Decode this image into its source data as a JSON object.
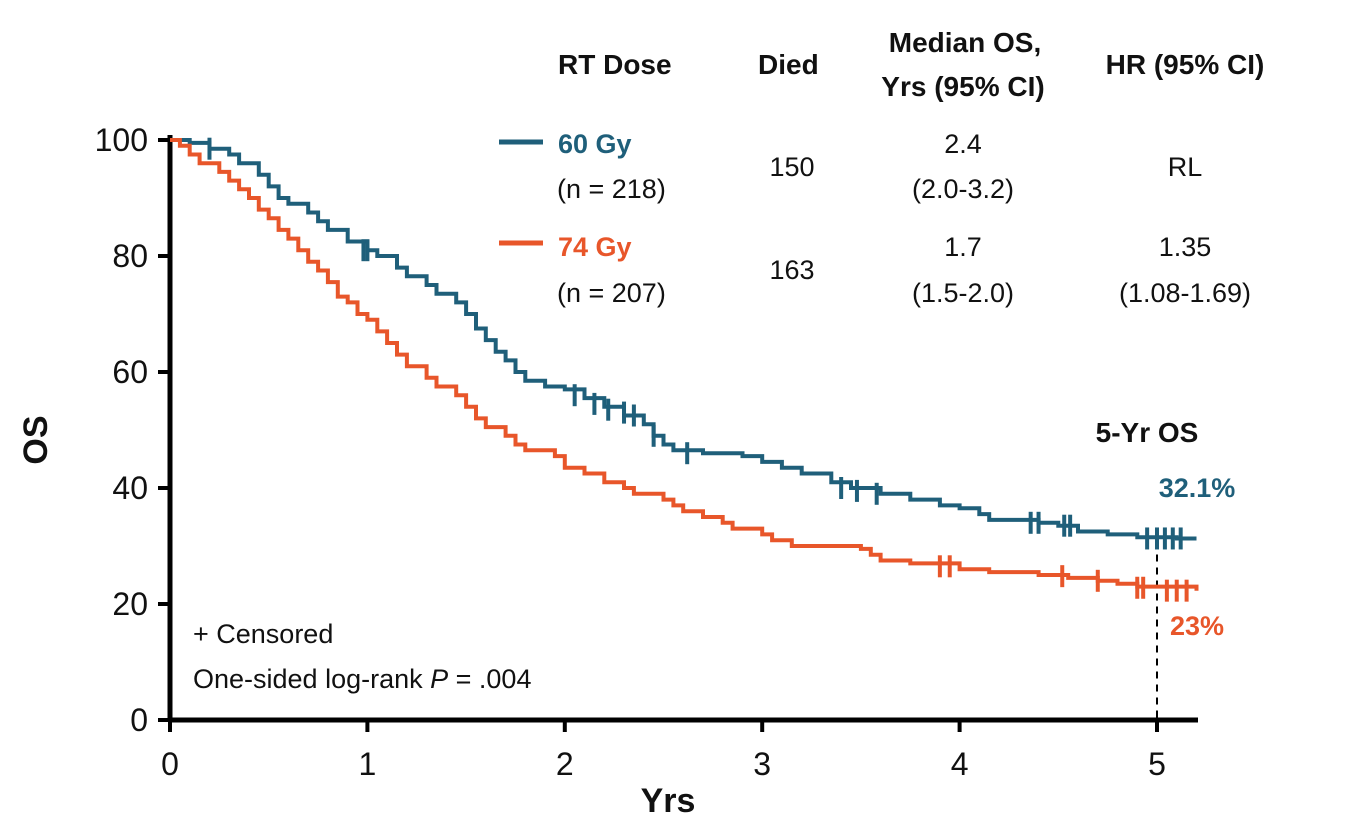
{
  "colors": {
    "arm_60": "#1f5f7a",
    "arm_74": "#e8562a",
    "axis": "#000000"
  },
  "table": {
    "headers": {
      "dose": "RT Dose",
      "died": "Died",
      "median_line1": "Median OS,",
      "median_line2": "Yrs (95% CI)",
      "hr": "HR (95% CI)"
    },
    "rows": [
      {
        "dose": "60 Gy",
        "n": "(n = 218)",
        "died": "150",
        "median": "2.4",
        "median_ci": "(2.0-3.2)",
        "hr": "RL",
        "hr_ci": ""
      },
      {
        "dose": "74 Gy",
        "n": "(n = 207)",
        "died": "163",
        "median": "1.7",
        "median_ci": "(1.5-2.0)",
        "hr": "1.35",
        "hr_ci": "(1.08-1.69)"
      }
    ]
  },
  "annotations": {
    "five_yr_title": "5-Yr OS",
    "pct_60": "32.1%",
    "pct_74": "23%",
    "censored": "+ Censored",
    "logrank_prefix": "One-sided log-rank ",
    "logrank_p": "P",
    "logrank_suffix": " = .004"
  },
  "chart_data": {
    "type": "line",
    "step": true,
    "xlabel": "Yrs",
    "ylabel": "OS",
    "xlim": [
      0,
      5.2
    ],
    "ylim": [
      0,
      100
    ],
    "xticks": [
      "0",
      "1",
      "2",
      "3",
      "4",
      "5"
    ],
    "yticks": [
      "0",
      "20",
      "40",
      "60",
      "80",
      "100"
    ],
    "reference_line_x": 5,
    "series": [
      {
        "name": "60 Gy",
        "color": "#1f5f7a",
        "points": [
          [
            0,
            100
          ],
          [
            0.1,
            99.5
          ],
          [
            0.2,
            98.5
          ],
          [
            0.3,
            97.5
          ],
          [
            0.35,
            96
          ],
          [
            0.45,
            94
          ],
          [
            0.5,
            92
          ],
          [
            0.55,
            90
          ],
          [
            0.6,
            89
          ],
          [
            0.7,
            87.5
          ],
          [
            0.75,
            86
          ],
          [
            0.8,
            84.5
          ],
          [
            0.9,
            82.5
          ],
          [
            1.0,
            81
          ],
          [
            1.05,
            80
          ],
          [
            1.15,
            78
          ],
          [
            1.2,
            76.5
          ],
          [
            1.3,
            75
          ],
          [
            1.35,
            73.5
          ],
          [
            1.45,
            72
          ],
          [
            1.5,
            70
          ],
          [
            1.55,
            67.5
          ],
          [
            1.6,
            65.5
          ],
          [
            1.65,
            63.5
          ],
          [
            1.7,
            62
          ],
          [
            1.75,
            60
          ],
          [
            1.8,
            58.5
          ],
          [
            1.9,
            57.5
          ],
          [
            2.0,
            57
          ],
          [
            2.1,
            55.5
          ],
          [
            2.2,
            54
          ],
          [
            2.3,
            52.5
          ],
          [
            2.4,
            51
          ],
          [
            2.45,
            49
          ],
          [
            2.5,
            47.5
          ],
          [
            2.55,
            46.5
          ],
          [
            2.7,
            46
          ],
          [
            2.9,
            45.5
          ],
          [
            3.0,
            44.5
          ],
          [
            3.1,
            43.5
          ],
          [
            3.2,
            42.5
          ],
          [
            3.35,
            41
          ],
          [
            3.45,
            40
          ],
          [
            3.6,
            39
          ],
          [
            3.75,
            38
          ],
          [
            3.9,
            37
          ],
          [
            4.0,
            36.5
          ],
          [
            4.1,
            35.5
          ],
          [
            4.15,
            34.5
          ],
          [
            4.4,
            34
          ],
          [
            4.5,
            33.5
          ],
          [
            4.6,
            32.5
          ],
          [
            4.75,
            32
          ],
          [
            4.9,
            31.5
          ],
          [
            5.1,
            31.3
          ],
          [
            5.2,
            31.3
          ]
        ],
        "censored": [
          [
            0.2,
            98.5
          ],
          [
            0.98,
            81
          ],
          [
            1.0,
            81
          ],
          [
            2.05,
            56
          ],
          [
            2.15,
            54.5
          ],
          [
            2.22,
            53.5
          ],
          [
            2.3,
            53
          ],
          [
            2.35,
            52.5
          ],
          [
            2.45,
            49
          ],
          [
            2.62,
            46
          ],
          [
            3.4,
            40
          ],
          [
            3.48,
            39.5
          ],
          [
            3.58,
            39
          ],
          [
            4.36,
            34
          ],
          [
            4.4,
            34
          ],
          [
            4.53,
            33.5
          ],
          [
            4.56,
            33.5
          ],
          [
            4.95,
            31.3
          ],
          [
            5.0,
            31.3
          ],
          [
            5.04,
            31.3
          ],
          [
            5.08,
            31.3
          ],
          [
            5.12,
            31.3
          ]
        ],
        "five_year_os": "32.1%"
      },
      {
        "name": "74 Gy",
        "color": "#e8562a",
        "points": [
          [
            0,
            100
          ],
          [
            0.05,
            99
          ],
          [
            0.1,
            97.5
          ],
          [
            0.15,
            96
          ],
          [
            0.25,
            94.5
          ],
          [
            0.3,
            93
          ],
          [
            0.35,
            91.5
          ],
          [
            0.4,
            90
          ],
          [
            0.45,
            88
          ],
          [
            0.5,
            86.5
          ],
          [
            0.55,
            84.5
          ],
          [
            0.6,
            83
          ],
          [
            0.65,
            81
          ],
          [
            0.7,
            79
          ],
          [
            0.75,
            77.5
          ],
          [
            0.8,
            75.5
          ],
          [
            0.85,
            73
          ],
          [
            0.9,
            72
          ],
          [
            0.95,
            70
          ],
          [
            1.0,
            69
          ],
          [
            1.05,
            67
          ],
          [
            1.1,
            65
          ],
          [
            1.15,
            63
          ],
          [
            1.2,
            61
          ],
          [
            1.3,
            59
          ],
          [
            1.35,
            57.5
          ],
          [
            1.45,
            56
          ],
          [
            1.5,
            54
          ],
          [
            1.55,
            52
          ],
          [
            1.6,
            50.5
          ],
          [
            1.7,
            49
          ],
          [
            1.75,
            47.5
          ],
          [
            1.8,
            46.5
          ],
          [
            1.95,
            45.5
          ],
          [
            2.0,
            43.5
          ],
          [
            2.1,
            42.5
          ],
          [
            2.2,
            41
          ],
          [
            2.3,
            40
          ],
          [
            2.35,
            39
          ],
          [
            2.5,
            38
          ],
          [
            2.55,
            37
          ],
          [
            2.6,
            36
          ],
          [
            2.7,
            35
          ],
          [
            2.8,
            34
          ],
          [
            2.85,
            33
          ],
          [
            3.0,
            32
          ],
          [
            3.05,
            31
          ],
          [
            3.15,
            30
          ],
          [
            3.5,
            29.5
          ],
          [
            3.55,
            28.5
          ],
          [
            3.6,
            27.5
          ],
          [
            3.75,
            27
          ],
          [
            4.0,
            26
          ],
          [
            4.15,
            25.5
          ],
          [
            4.4,
            25
          ],
          [
            4.55,
            24.5
          ],
          [
            4.7,
            24
          ],
          [
            4.8,
            23.5
          ],
          [
            4.9,
            23
          ],
          [
            5.2,
            22.3
          ]
        ],
        "censored": [
          [
            3.9,
            26.5
          ],
          [
            3.95,
            26.5
          ],
          [
            4.52,
            24.8
          ],
          [
            4.7,
            24
          ],
          [
            4.9,
            22.8
          ],
          [
            4.93,
            22.8
          ],
          [
            5.05,
            22.3
          ],
          [
            5.1,
            22.3
          ],
          [
            5.15,
            22.3
          ]
        ],
        "five_year_os": "23%"
      }
    ]
  }
}
